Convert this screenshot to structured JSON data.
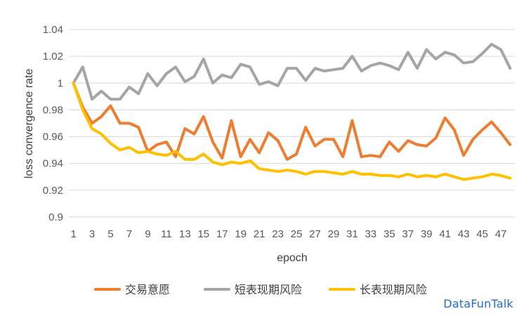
{
  "chart_data": {
    "type": "line",
    "title": "",
    "xlabel": "epoch",
    "ylabel": "loss convergence rate",
    "ylim": [
      0.9,
      1.04
    ],
    "yticks": [
      "0.9",
      "0.92",
      "0.94",
      "0.96",
      "0.98",
      "1",
      "1.02",
      "1.04"
    ],
    "grid": "horizontal",
    "legend_position": "bottom",
    "x": [
      1,
      2,
      3,
      4,
      5,
      6,
      7,
      8,
      9,
      10,
      11,
      12,
      13,
      14,
      15,
      16,
      17,
      18,
      19,
      20,
      21,
      22,
      23,
      24,
      25,
      26,
      27,
      28,
      29,
      30,
      31,
      32,
      33,
      34,
      35,
      36,
      37,
      38,
      39,
      40,
      41,
      42,
      43,
      44,
      45,
      46,
      47,
      48
    ],
    "xtick_labels": [
      "1",
      "3",
      "5",
      "7",
      "9",
      "11",
      "13",
      "15",
      "17",
      "19",
      "21",
      "23",
      "25",
      "27",
      "29",
      "31",
      "33",
      "35",
      "37",
      "39",
      "41",
      "43",
      "45",
      "47"
    ],
    "series": [
      {
        "name": "交易意愿",
        "color": "#ED7D31",
        "values": [
          1.0,
          0.982,
          0.97,
          0.975,
          0.983,
          0.97,
          0.97,
          0.967,
          0.949,
          0.954,
          0.956,
          0.945,
          0.966,
          0.962,
          0.975,
          0.956,
          0.944,
          0.972,
          0.945,
          0.958,
          0.948,
          0.963,
          0.957,
          0.943,
          0.947,
          0.967,
          0.953,
          0.958,
          0.958,
          0.945,
          0.972,
          0.945,
          0.946,
          0.945,
          0.956,
          0.949,
          0.957,
          0.954,
          0.953,
          0.959,
          0.974,
          0.965,
          0.946,
          0.958,
          0.965,
          0.971,
          0.963,
          0.954
        ]
      },
      {
        "name": "短表现期风险",
        "color": "#A5A5A5",
        "values": [
          1.0,
          1.012,
          0.988,
          0.994,
          0.988,
          0.988,
          0.997,
          0.992,
          1.007,
          0.998,
          1.007,
          1.012,
          1.001,
          1.005,
          1.018,
          1.0,
          1.006,
          1.004,
          1.014,
          1.012,
          0.999,
          1.001,
          0.998,
          1.011,
          1.011,
          1.002,
          1.011,
          1.009,
          1.01,
          1.011,
          1.02,
          1.009,
          1.013,
          1.015,
          1.013,
          1.01,
          1.023,
          1.011,
          1.025,
          1.018,
          1.023,
          1.021,
          1.015,
          1.016,
          1.022,
          1.029,
          1.025,
          1.011
        ]
      },
      {
        "name": "长表现期风险",
        "color": "#FFC000",
        "values": [
          1.0,
          0.98,
          0.966,
          0.962,
          0.955,
          0.95,
          0.952,
          0.948,
          0.949,
          0.947,
          0.946,
          0.949,
          0.943,
          0.943,
          0.947,
          0.941,
          0.939,
          0.941,
          0.94,
          0.942,
          0.936,
          0.935,
          0.934,
          0.935,
          0.934,
          0.932,
          0.934,
          0.934,
          0.933,
          0.932,
          0.934,
          0.932,
          0.932,
          0.931,
          0.931,
          0.93,
          0.932,
          0.93,
          0.931,
          0.93,
          0.932,
          0.93,
          0.928,
          0.929,
          0.93,
          0.932,
          0.931,
          0.929
        ]
      }
    ]
  },
  "watermark": "DataFunTalk"
}
